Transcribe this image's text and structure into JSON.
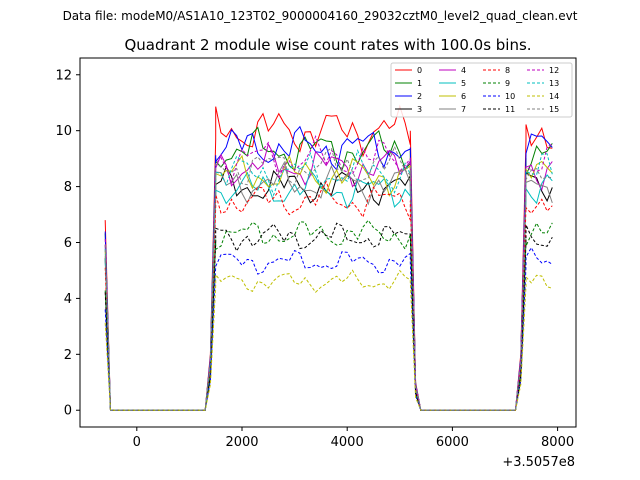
{
  "suptitle": "Data file: modeM0/AS1A10_123T02_9000004160_29032cztM0_level2_quad_clean.evt",
  "chart_data": {
    "type": "line",
    "title": "Quadrant 2 module wise count rates with 100.0s bins.",
    "xlabel": "",
    "ylabel": "",
    "x_offset_label": "+3.5057e8",
    "xlim": [
      -1080,
      8350
    ],
    "ylim": [
      -0.6,
      12.6
    ],
    "x_ticks": [
      0,
      2000,
      4000,
      6000,
      8000
    ],
    "x_tick_labels": [
      "0",
      "2000",
      "4000",
      "6000",
      "8000"
    ],
    "y_ticks": [
      0,
      2,
      4,
      6,
      8,
      10,
      12
    ],
    "y_tick_labels": [
      "0",
      "2",
      "4",
      "6",
      "8",
      "10",
      "12"
    ],
    "legend_position": "upper right",
    "series": [
      {
        "name": "0",
        "color": "#ff0000",
        "dash": false,
        "level": 10.0
      },
      {
        "name": "1",
        "color": "#008000",
        "dash": false,
        "level": 9.3
      },
      {
        "name": "2",
        "color": "#0000ff",
        "dash": false,
        "level": 9.4
      },
      {
        "name": "3",
        "color": "#000000",
        "dash": false,
        "level": 8.0
      },
      {
        "name": "4",
        "color": "#bf00bf",
        "dash": false,
        "level": 8.7
      },
      {
        "name": "5",
        "color": "#00bfbf",
        "dash": false,
        "level": 7.9
      },
      {
        "name": "6",
        "color": "#bfbf00",
        "dash": false,
        "level": 8.4
      },
      {
        "name": "7",
        "color": "#808080",
        "dash": false,
        "level": 8.1
      },
      {
        "name": "8",
        "color": "#ff0000",
        "dash": true,
        "level": 7.5
      },
      {
        "name": "9",
        "color": "#008000",
        "dash": true,
        "level": 6.3
      },
      {
        "name": "10",
        "color": "#0000ff",
        "dash": true,
        "level": 5.3
      },
      {
        "name": "11",
        "color": "#000000",
        "dash": true,
        "level": 6.2
      },
      {
        "name": "12",
        "color": "#bf00bf",
        "dash": true,
        "level": 9.0
      },
      {
        "name": "13",
        "color": "#00bfbf",
        "dash": true,
        "level": 8.5
      },
      {
        "name": "14",
        "color": "#bfbf00",
        "dash": true,
        "level": 4.6
      },
      {
        "name": "15",
        "color": "#808080",
        "dash": true,
        "level": 8.7
      }
    ],
    "segments": [
      {
        "start": -600,
        "end": -500,
        "step": 100,
        "state": "decay"
      },
      {
        "start": -500,
        "end": 1300,
        "step": 100,
        "state": "zero"
      },
      {
        "start": 1400,
        "end": 1500,
        "step": 100,
        "state": "rise"
      },
      {
        "start": 1500,
        "end": 5200,
        "step": 100,
        "state": "plateau"
      },
      {
        "start": 5200,
        "end": 5400,
        "step": 100,
        "state": "fall"
      },
      {
        "start": 5400,
        "end": 7200,
        "step": 100,
        "state": "zero"
      },
      {
        "start": 7300,
        "end": 7400,
        "step": 100,
        "state": "rise"
      },
      {
        "start": 7400,
        "end": 7900,
        "step": 100,
        "state": "plateau"
      }
    ]
  }
}
